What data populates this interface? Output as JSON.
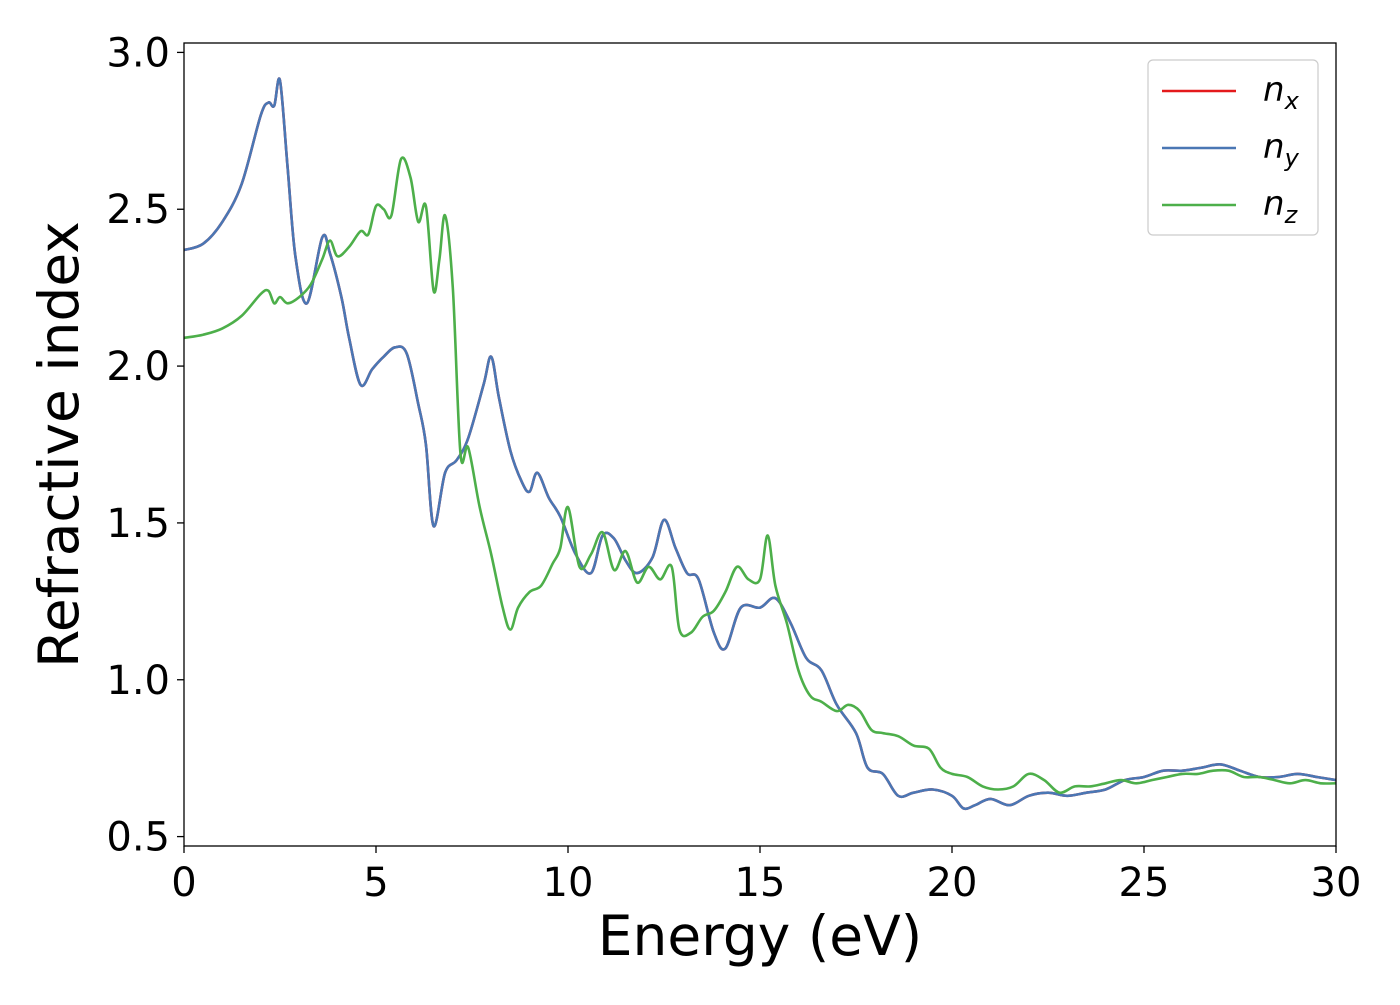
{
  "chart_data": {
    "type": "line",
    "title": "",
    "xlabel": "Energy (eV)",
    "ylabel": "Refractive index",
    "xlim": [
      0,
      30
    ],
    "ylim": [
      0.47,
      3.03
    ],
    "xticks": [
      0,
      5,
      10,
      15,
      20,
      25,
      30
    ],
    "xtick_labels": [
      "0",
      "5",
      "10",
      "15",
      "20",
      "25",
      "30"
    ],
    "yticks": [
      0.5,
      1.0,
      1.5,
      2.0,
      2.5,
      3.0
    ],
    "ytick_labels": [
      "0.5",
      "1.0",
      "1.5",
      "2.0",
      "2.5",
      "3.0"
    ],
    "grid": false,
    "legend_position": "top-right",
    "series": [
      {
        "name": "n_x",
        "legend_base": "n",
        "legend_sub": "x",
        "color": "#e41a1c",
        "x": [
          0,
          0.5,
          1.0,
          1.5,
          2.0,
          2.2,
          2.35,
          2.5,
          2.7,
          2.9,
          3.2,
          3.6,
          3.8,
          4.1,
          4.3,
          4.6,
          4.9,
          5.2,
          5.5,
          5.8,
          6.1,
          6.3,
          6.5,
          6.8,
          7.1,
          7.4,
          7.8,
          8.0,
          8.2,
          8.5,
          8.8,
          9.0,
          9.2,
          9.5,
          9.8,
          10.2,
          10.6,
          10.9,
          11.2,
          11.5,
          11.8,
          12.2,
          12.5,
          12.8,
          13.1,
          13.4,
          13.8,
          14.1,
          14.5,
          15.0,
          15.4,
          15.8,
          16.2,
          16.6,
          17.0,
          17.5,
          17.8,
          18.2,
          18.6,
          19.0,
          19.5,
          20.0,
          20.3,
          20.6,
          21.0,
          21.5,
          22.0,
          22.5,
          23.0,
          23.5,
          24.0,
          24.5,
          25.0,
          25.5,
          26.0,
          26.5,
          27.0,
          27.5,
          28.0,
          28.5,
          29.0,
          29.5,
          30.0
        ],
        "y": [
          2.37,
          2.39,
          2.46,
          2.58,
          2.8,
          2.84,
          2.83,
          2.91,
          2.63,
          2.35,
          2.2,
          2.41,
          2.36,
          2.22,
          2.09,
          1.94,
          1.99,
          2.03,
          2.06,
          2.04,
          1.88,
          1.75,
          1.49,
          1.66,
          1.7,
          1.77,
          1.94,
          2.03,
          1.9,
          1.73,
          1.63,
          1.6,
          1.66,
          1.58,
          1.52,
          1.4,
          1.34,
          1.46,
          1.45,
          1.38,
          1.34,
          1.39,
          1.51,
          1.42,
          1.34,
          1.32,
          1.15,
          1.1,
          1.23,
          1.23,
          1.26,
          1.18,
          1.07,
          1.03,
          0.92,
          0.83,
          0.72,
          0.7,
          0.63,
          0.64,
          0.65,
          0.63,
          0.59,
          0.6,
          0.62,
          0.6,
          0.63,
          0.64,
          0.63,
          0.64,
          0.65,
          0.68,
          0.69,
          0.71,
          0.71,
          0.72,
          0.73,
          0.71,
          0.69,
          0.69,
          0.7,
          0.69,
          0.68
        ]
      },
      {
        "name": "n_y",
        "legend_base": "n",
        "legend_sub": "y",
        "color": "#4a77b4",
        "x": [
          0,
          0.5,
          1.0,
          1.5,
          2.0,
          2.2,
          2.35,
          2.5,
          2.7,
          2.9,
          3.2,
          3.6,
          3.8,
          4.1,
          4.3,
          4.6,
          4.9,
          5.2,
          5.5,
          5.8,
          6.1,
          6.3,
          6.5,
          6.8,
          7.1,
          7.4,
          7.8,
          8.0,
          8.2,
          8.5,
          8.8,
          9.0,
          9.2,
          9.5,
          9.8,
          10.2,
          10.6,
          10.9,
          11.2,
          11.5,
          11.8,
          12.2,
          12.5,
          12.8,
          13.1,
          13.4,
          13.8,
          14.1,
          14.5,
          15.0,
          15.4,
          15.8,
          16.2,
          16.6,
          17.0,
          17.5,
          17.8,
          18.2,
          18.6,
          19.0,
          19.5,
          20.0,
          20.3,
          20.6,
          21.0,
          21.5,
          22.0,
          22.5,
          23.0,
          23.5,
          24.0,
          24.5,
          25.0,
          25.5,
          26.0,
          26.5,
          27.0,
          27.5,
          28.0,
          28.5,
          29.0,
          29.5,
          30.0
        ],
        "y": [
          2.37,
          2.39,
          2.46,
          2.58,
          2.8,
          2.84,
          2.83,
          2.91,
          2.63,
          2.35,
          2.2,
          2.41,
          2.36,
          2.22,
          2.09,
          1.94,
          1.99,
          2.03,
          2.06,
          2.04,
          1.88,
          1.75,
          1.49,
          1.66,
          1.7,
          1.77,
          1.94,
          2.03,
          1.9,
          1.73,
          1.63,
          1.6,
          1.66,
          1.58,
          1.52,
          1.4,
          1.34,
          1.46,
          1.45,
          1.38,
          1.34,
          1.39,
          1.51,
          1.42,
          1.34,
          1.32,
          1.15,
          1.1,
          1.23,
          1.23,
          1.26,
          1.18,
          1.07,
          1.03,
          0.92,
          0.83,
          0.72,
          0.7,
          0.63,
          0.64,
          0.65,
          0.63,
          0.59,
          0.6,
          0.62,
          0.6,
          0.63,
          0.64,
          0.63,
          0.64,
          0.65,
          0.68,
          0.69,
          0.71,
          0.71,
          0.72,
          0.73,
          0.71,
          0.69,
          0.69,
          0.7,
          0.69,
          0.68
        ]
      },
      {
        "name": "n_z",
        "legend_base": "n",
        "legend_sub": "z",
        "color": "#4daf4a",
        "x": [
          0,
          0.5,
          1.0,
          1.5,
          2.0,
          2.2,
          2.35,
          2.5,
          2.7,
          3.0,
          3.3,
          3.6,
          3.8,
          4.0,
          4.3,
          4.6,
          4.8,
          5.0,
          5.2,
          5.4,
          5.65,
          5.9,
          6.1,
          6.3,
          6.5,
          6.65,
          6.8,
          7.0,
          7.2,
          7.4,
          7.7,
          8.0,
          8.3,
          8.5,
          8.7,
          9.0,
          9.3,
          9.6,
          9.8,
          10.0,
          10.3,
          10.6,
          10.9,
          11.2,
          11.5,
          11.8,
          12.1,
          12.4,
          12.7,
          12.9,
          13.2,
          13.5,
          13.8,
          14.1,
          14.4,
          14.7,
          15.0,
          15.2,
          15.4,
          15.7,
          16.0,
          16.3,
          16.6,
          17.0,
          17.3,
          17.6,
          17.9,
          18.2,
          18.6,
          19.0,
          19.4,
          19.7,
          20.0,
          20.4,
          20.8,
          21.2,
          21.6,
          22.0,
          22.4,
          22.8,
          23.2,
          23.6,
          24.0,
          24.4,
          24.8,
          25.2,
          25.6,
          26.0,
          26.4,
          26.8,
          27.2,
          27.6,
          28.0,
          28.4,
          28.8,
          29.2,
          29.6,
          30.0
        ],
        "y": [
          2.09,
          2.1,
          2.12,
          2.16,
          2.23,
          2.24,
          2.2,
          2.22,
          2.2,
          2.22,
          2.26,
          2.34,
          2.4,
          2.35,
          2.38,
          2.43,
          2.42,
          2.51,
          2.5,
          2.48,
          2.66,
          2.6,
          2.46,
          2.51,
          2.24,
          2.34,
          2.48,
          2.25,
          1.72,
          1.74,
          1.55,
          1.4,
          1.23,
          1.16,
          1.23,
          1.28,
          1.3,
          1.37,
          1.42,
          1.55,
          1.36,
          1.4,
          1.47,
          1.35,
          1.41,
          1.31,
          1.36,
          1.32,
          1.36,
          1.16,
          1.15,
          1.2,
          1.22,
          1.28,
          1.36,
          1.32,
          1.32,
          1.46,
          1.3,
          1.18,
          1.03,
          0.95,
          0.93,
          0.9,
          0.92,
          0.9,
          0.84,
          0.83,
          0.82,
          0.79,
          0.78,
          0.72,
          0.7,
          0.69,
          0.66,
          0.65,
          0.66,
          0.7,
          0.68,
          0.64,
          0.66,
          0.66,
          0.67,
          0.68,
          0.67,
          0.68,
          0.69,
          0.7,
          0.7,
          0.71,
          0.71,
          0.69,
          0.69,
          0.68,
          0.67,
          0.68,
          0.67,
          0.67
        ]
      }
    ]
  }
}
